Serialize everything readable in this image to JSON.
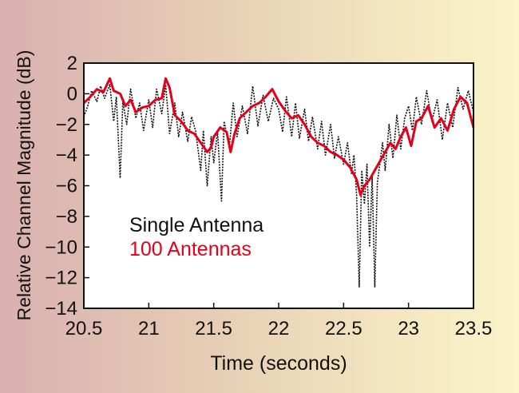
{
  "chart_data": {
    "type": "line",
    "title": "",
    "xlabel": "Time (seconds)",
    "ylabel": "Relative Channel Magnitude (dB)",
    "xlim": [
      20.5,
      23.5
    ],
    "ylim": [
      -14,
      2
    ],
    "xticks": [
      20.5,
      21,
      21.5,
      22,
      22.5,
      23,
      23.5
    ],
    "xtick_labels": [
      "20.5",
      "21",
      "21.5",
      "22",
      "22.5",
      "23",
      "23.5"
    ],
    "yticks": [
      2,
      0,
      -2,
      -4,
      -6,
      -8,
      -10,
      -12,
      -14
    ],
    "ytick_labels": [
      "2",
      "0",
      "−2",
      "−4",
      "−6",
      "−8",
      "−10",
      "−12",
      "−14"
    ],
    "grid": false,
    "legend_position": "lower-left",
    "colors": {
      "single": "#111111",
      "hundred": "#e3001b",
      "background_left": "#d9b0b0",
      "background_right": "#faf4c8"
    },
    "series": [
      {
        "name": "Single Antenna",
        "style": "dotted",
        "color": "#111111",
        "points": [
          [
            20.5,
            -1.5
          ],
          [
            20.53,
            -0.8
          ],
          [
            20.56,
            0.2
          ],
          [
            20.6,
            -0.5
          ],
          [
            20.63,
            0.5
          ],
          [
            20.66,
            -0.3
          ],
          [
            20.7,
            0.6
          ],
          [
            20.73,
            -1.8
          ],
          [
            20.75,
            -0.2
          ],
          [
            20.78,
            -5.5
          ],
          [
            20.8,
            -0.5
          ],
          [
            20.83,
            -2.0
          ],
          [
            20.86,
            0.3
          ],
          [
            20.9,
            -1.6
          ],
          [
            20.93,
            -0.6
          ],
          [
            20.96,
            -2.4
          ],
          [
            21.0,
            -0.4
          ],
          [
            21.03,
            -2.2
          ],
          [
            21.06,
            0.3
          ],
          [
            21.1,
            -1.3
          ],
          [
            21.13,
            0.6
          ],
          [
            21.16,
            -2.6
          ],
          [
            21.2,
            -0.6
          ],
          [
            21.23,
            -2.8
          ],
          [
            21.26,
            -1.2
          ],
          [
            21.3,
            -3.1
          ],
          [
            21.33,
            -1.5
          ],
          [
            21.36,
            -2.4
          ],
          [
            21.4,
            -5.0
          ],
          [
            21.42,
            -2.4
          ],
          [
            21.45,
            -6.0
          ],
          [
            21.48,
            -2.8
          ],
          [
            21.5,
            -4.5
          ],
          [
            21.53,
            -2.5
          ],
          [
            21.56,
            -7.0
          ],
          [
            21.58,
            -1.8
          ],
          [
            21.62,
            -3.5
          ],
          [
            21.65,
            -0.6
          ],
          [
            21.68,
            -2.8
          ],
          [
            21.72,
            -0.8
          ],
          [
            21.76,
            -2.6
          ],
          [
            21.8,
            0.5
          ],
          [
            21.84,
            -2.1
          ],
          [
            21.88,
            -0.1
          ],
          [
            21.92,
            -1.8
          ],
          [
            21.96,
            -0.3
          ],
          [
            22.0,
            -1.0
          ],
          [
            22.03,
            -2.5
          ],
          [
            22.06,
            -0.2
          ],
          [
            22.1,
            -2.8
          ],
          [
            22.13,
            -0.6
          ],
          [
            22.16,
            -2.9
          ],
          [
            22.2,
            -1.0
          ],
          [
            22.23,
            -3.1
          ],
          [
            22.26,
            -1.5
          ],
          [
            22.3,
            -3.6
          ],
          [
            22.33,
            -1.8
          ],
          [
            22.36,
            -4.0
          ],
          [
            22.4,
            -2.0
          ],
          [
            22.43,
            -4.2
          ],
          [
            22.46,
            -2.8
          ],
          [
            22.5,
            -4.6
          ],
          [
            22.53,
            -3.2
          ],
          [
            22.56,
            -5.2
          ],
          [
            22.58,
            -4.0
          ],
          [
            22.6,
            -6.6
          ],
          [
            22.62,
            -12.6
          ],
          [
            22.64,
            -5.0
          ],
          [
            22.66,
            -7.2
          ],
          [
            22.68,
            -4.6
          ],
          [
            22.7,
            -10.0
          ],
          [
            22.72,
            -5.4
          ],
          [
            22.74,
            -12.6
          ],
          [
            22.76,
            -5.8
          ],
          [
            22.78,
            -4.5
          ],
          [
            22.8,
            -3.2
          ],
          [
            22.82,
            -5.0
          ],
          [
            22.85,
            -2.0
          ],
          [
            22.88,
            -4.2
          ],
          [
            22.91,
            -1.4
          ],
          [
            22.94,
            -3.6
          ],
          [
            22.97,
            -1.6
          ],
          [
            23.0,
            -0.8
          ],
          [
            23.03,
            -2.4
          ],
          [
            23.06,
            -0.2
          ],
          [
            23.1,
            -2.0
          ],
          [
            23.14,
            0.2
          ],
          [
            23.18,
            -1.8
          ],
          [
            23.22,
            -0.4
          ],
          [
            23.26,
            -3.0
          ],
          [
            23.3,
            -0.6
          ],
          [
            23.34,
            -2.2
          ],
          [
            23.38,
            0.4
          ],
          [
            23.42,
            -1.0
          ],
          [
            23.46,
            0.2
          ],
          [
            23.5,
            -1.2
          ]
        ]
      },
      {
        "name": "100 Antennas",
        "style": "solid",
        "color": "#e3001b",
        "points": [
          [
            20.5,
            -0.6
          ],
          [
            20.55,
            -0.2
          ],
          [
            20.6,
            0.3
          ],
          [
            20.65,
            0.1
          ],
          [
            20.7,
            1.0
          ],
          [
            20.73,
            0.2
          ],
          [
            20.78,
            0.0
          ],
          [
            20.82,
            -0.8
          ],
          [
            20.86,
            -0.4
          ],
          [
            20.9,
            -1.2
          ],
          [
            20.95,
            -0.9
          ],
          [
            21.0,
            -0.8
          ],
          [
            21.05,
            -0.4
          ],
          [
            21.1,
            -0.3
          ],
          [
            21.13,
            1.0
          ],
          [
            21.16,
            0.4
          ],
          [
            21.2,
            -1.4
          ],
          [
            21.25,
            -1.8
          ],
          [
            21.3,
            -2.4
          ],
          [
            21.35,
            -2.6
          ],
          [
            21.4,
            -3.2
          ],
          [
            21.45,
            -3.8
          ],
          [
            21.48,
            -3.5
          ],
          [
            21.5,
            -2.8
          ],
          [
            21.55,
            -2.2
          ],
          [
            21.6,
            -2.5
          ],
          [
            21.63,
            -3.8
          ],
          [
            21.66,
            -2.6
          ],
          [
            21.7,
            -1.6
          ],
          [
            21.75,
            -1.2
          ],
          [
            21.8,
            -0.8
          ],
          [
            21.85,
            -0.6
          ],
          [
            21.9,
            -0.2
          ],
          [
            21.95,
            0.3
          ],
          [
            22.0,
            -0.5
          ],
          [
            22.05,
            -1.1
          ],
          [
            22.1,
            -1.6
          ],
          [
            22.15,
            -1.4
          ],
          [
            22.2,
            -2.0
          ],
          [
            22.25,
            -2.8
          ],
          [
            22.3,
            -3.2
          ],
          [
            22.35,
            -3.4
          ],
          [
            22.4,
            -3.8
          ],
          [
            22.45,
            -4.0
          ],
          [
            22.5,
            -4.3
          ],
          [
            22.55,
            -4.8
          ],
          [
            22.6,
            -5.6
          ],
          [
            22.63,
            -6.6
          ],
          [
            22.66,
            -6.0
          ],
          [
            22.7,
            -5.6
          ],
          [
            22.74,
            -5.0
          ],
          [
            22.78,
            -4.4
          ],
          [
            22.82,
            -3.8
          ],
          [
            22.86,
            -3.2
          ],
          [
            22.9,
            -3.6
          ],
          [
            22.94,
            -2.8
          ],
          [
            22.98,
            -2.2
          ],
          [
            23.02,
            -3.4
          ],
          [
            23.06,
            -1.8
          ],
          [
            23.1,
            -1.6
          ],
          [
            23.15,
            -0.8
          ],
          [
            23.2,
            -2.2
          ],
          [
            23.25,
            -1.6
          ],
          [
            23.3,
            -2.4
          ],
          [
            23.35,
            -1.0
          ],
          [
            23.4,
            -0.2
          ],
          [
            23.45,
            -0.6
          ],
          [
            23.5,
            -2.2
          ]
        ]
      }
    ]
  }
}
